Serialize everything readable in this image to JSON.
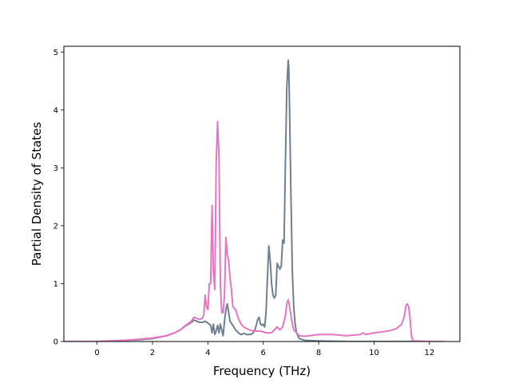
{
  "chart_data": {
    "type": "line",
    "title": "",
    "xlabel": "Frequency (THz)",
    "ylabel": "Partial Density of States",
    "xlim": [
      -1.2,
      13.1
    ],
    "ylim": [
      0,
      5.1
    ],
    "xticks": [
      0,
      2,
      4,
      6,
      8,
      10,
      12
    ],
    "yticks": [
      0,
      1,
      2,
      3,
      4,
      5
    ],
    "grid": false,
    "legend": "none",
    "series": [
      {
        "color": "#708090",
        "x": [
          -1.2,
          0,
          0.5,
          1.0,
          1.5,
          2.0,
          2.5,
          2.8,
          3.0,
          3.2,
          3.4,
          3.5,
          3.6,
          3.7,
          3.8,
          3.9,
          4.0,
          4.1,
          4.15,
          4.2,
          4.25,
          4.3,
          4.35,
          4.4,
          4.45,
          4.5,
          4.55,
          4.6,
          4.65,
          4.7,
          4.75,
          4.8,
          4.9,
          5.0,
          5.1,
          5.2,
          5.3,
          5.4,
          5.5,
          5.6,
          5.7,
          5.8,
          5.85,
          5.9,
          5.95,
          6.0,
          6.05,
          6.1,
          6.15,
          6.2,
          6.25,
          6.3,
          6.35,
          6.4,
          6.45,
          6.5,
          6.55,
          6.6,
          6.65,
          6.7,
          6.75,
          6.8,
          6.85,
          6.9,
          6.92,
          6.95,
          7.0,
          7.05,
          7.1,
          7.15,
          7.2,
          7.3,
          7.5,
          8.0,
          9.0,
          10.0,
          11.0,
          12.0,
          12.5
        ],
        "y": [
          0,
          0,
          0.01,
          0.02,
          0.03,
          0.05,
          0.1,
          0.15,
          0.2,
          0.27,
          0.33,
          0.37,
          0.35,
          0.33,
          0.33,
          0.35,
          0.32,
          0.28,
          0.15,
          0.3,
          0.12,
          0.18,
          0.28,
          0.15,
          0.3,
          0.2,
          0.1,
          0.35,
          0.55,
          0.65,
          0.5,
          0.35,
          0.28,
          0.2,
          0.15,
          0.12,
          0.14,
          0.12,
          0.12,
          0.13,
          0.2,
          0.38,
          0.42,
          0.3,
          0.28,
          0.3,
          0.25,
          0.5,
          1.1,
          1.65,
          1.4,
          1.0,
          0.8,
          0.75,
          0.8,
          1.35,
          1.3,
          1.25,
          1.3,
          1.75,
          1.7,
          3.1,
          4.4,
          4.86,
          4.75,
          4.0,
          2.5,
          1.2,
          0.6,
          0.3,
          0.15,
          0.05,
          0.02,
          0.01,
          0,
          0,
          0,
          0,
          0
        ]
      },
      {
        "color": "#e377c2",
        "x": [
          -1.2,
          0,
          0.5,
          1.0,
          1.5,
          2.0,
          2.5,
          2.8,
          3.0,
          3.2,
          3.4,
          3.5,
          3.6,
          3.7,
          3.8,
          3.85,
          3.9,
          3.95,
          4.0,
          4.05,
          4.1,
          4.15,
          4.2,
          4.25,
          4.3,
          4.35,
          4.4,
          4.45,
          4.5,
          4.55,
          4.6,
          4.65,
          4.7,
          4.75,
          4.8,
          4.85,
          4.9,
          5.0,
          5.1,
          5.2,
          5.3,
          5.5,
          5.7,
          5.9,
          6.1,
          6.3,
          6.5,
          6.6,
          6.7,
          6.8,
          6.85,
          6.9,
          6.95,
          7.0,
          7.05,
          7.1,
          7.2,
          7.3,
          7.5,
          8.0,
          8.5,
          9.0,
          9.5,
          9.6,
          9.7,
          10.0,
          10.5,
          10.8,
          11.0,
          11.1,
          11.15,
          11.2,
          11.25,
          11.3,
          11.35,
          11.4,
          12.0,
          12.5
        ],
        "y": [
          0,
          0,
          0.01,
          0.02,
          0.04,
          0.06,
          0.1,
          0.15,
          0.2,
          0.28,
          0.35,
          0.42,
          0.4,
          0.38,
          0.4,
          0.45,
          0.8,
          0.6,
          0.55,
          1.0,
          1.0,
          2.35,
          1.2,
          0.9,
          3.1,
          3.8,
          3.2,
          1.0,
          0.5,
          0.5,
          0.8,
          1.8,
          1.5,
          1.4,
          1.1,
          0.9,
          0.6,
          0.55,
          0.4,
          0.3,
          0.25,
          0.2,
          0.18,
          0.18,
          0.15,
          0.15,
          0.25,
          0.2,
          0.25,
          0.45,
          0.65,
          0.72,
          0.6,
          0.45,
          0.3,
          0.2,
          0.15,
          0.1,
          0.09,
          0.12,
          0.12,
          0.1,
          0.12,
          0.15,
          0.12,
          0.15,
          0.18,
          0.22,
          0.3,
          0.45,
          0.62,
          0.65,
          0.6,
          0.4,
          0.1,
          0.01,
          0,
          0
        ]
      }
    ]
  }
}
